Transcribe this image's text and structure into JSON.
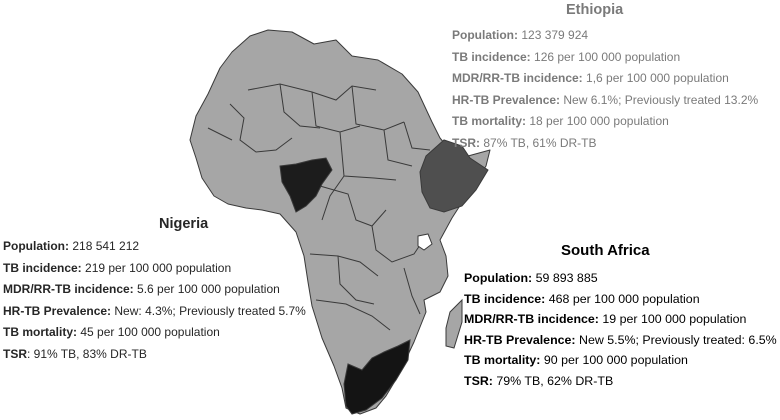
{
  "colors": {
    "continent": "#a6a6a6",
    "border": "#3a3a3a",
    "nigeria": "#1c1c1c",
    "ethiopia": "#4f4f4f",
    "south_africa": "#141414",
    "ethiopia_text": "#7a7a7a",
    "nigeria_text": "#262626",
    "south_africa_text": "#000000"
  },
  "ethiopia": {
    "name": "Ethiopia",
    "population_label": "Population:",
    "population": "123 379 924",
    "incidence_label": "TB incidence:",
    "incidence": "126 per 100 000 population",
    "mdr_label": "MDR/RR-TB  incidence:",
    "mdr": "1,6 per 100 000 population",
    "hr_label": "HR-TB Prevalence:",
    "hr": "New 6.1%; Previously treated 13.2%",
    "mortality_label": "TB mortality:",
    "mortality": "18 per 100 000 population",
    "tsr_label": "TSR:",
    "tsr": "87% TB, 61% DR-TB"
  },
  "nigeria": {
    "name": "Nigeria",
    "population_label": "Population:",
    "population": "218 541 212",
    "incidence_label": "TB incidence:",
    "incidence": "219 per 100 000 population",
    "mdr_label": "MDR/RR-TB incidence:",
    "mdr": "5.6 per 100 000 population",
    "hr_label": "HR-TB Prevalence:",
    "hr": "New: 4.3%; Previously  treated 5.7%",
    "mortality_label": "TB mortality:",
    "mortality": "45 per 100 000 population",
    "tsr_label": "TSR",
    "tsr": ": 91% TB, 83% DR-TB"
  },
  "south_africa": {
    "name": "South Africa",
    "population_label": "Population:",
    "population": "59 893 885",
    "incidence_label": "TB incidence:",
    "incidence": "468 per 100 000 population",
    "mdr_label": "MDR/RR-TB  incidence:",
    "mdr": "19 per 100 000 population",
    "hr_label": "HR-TB Prevalence:",
    "hr": "New 5.5%; Previously  treated: 6.5%",
    "mortality_label": "TB mortality:",
    "mortality": "90 per 100 000 population",
    "tsr_label": "TSR:",
    "tsr": "79% TB, 62% DR-TB"
  }
}
